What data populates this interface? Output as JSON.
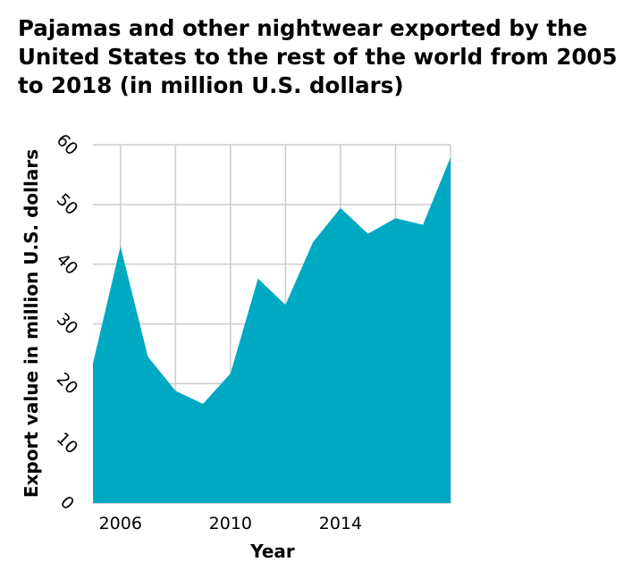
{
  "chart_data": {
    "type": "area",
    "title": "Pajamas and other nightwear exported by the United States to the rest of the world from 2005 to 2018 (in million U.S. dollars)",
    "xlabel": "Year",
    "ylabel": "Export value in million U.S. dollars",
    "x": [
      2005,
      2006,
      2007,
      2008,
      2009,
      2010,
      2011,
      2012,
      2013,
      2014,
      2015,
      2016,
      2017,
      2018
    ],
    "values": [
      23.4,
      43.0,
      24.5,
      18.8,
      16.6,
      21.7,
      37.6,
      33.2,
      43.7,
      49.4,
      45.1,
      47.7,
      46.6,
      57.9
    ],
    "xlim": [
      2005,
      2018
    ],
    "ylim": [
      0,
      60
    ],
    "x_ticks": [
      2006,
      2010,
      2014
    ],
    "x_tick_labels": [
      "2006",
      "2010",
      "2014"
    ],
    "y_ticks": [
      0,
      10,
      20,
      30,
      40,
      50,
      60
    ],
    "y_tick_labels": [
      "0",
      "10",
      "20",
      "30",
      "40",
      "50",
      "60"
    ],
    "x_grid": [
      2006,
      2008,
      2010,
      2012,
      2014,
      2016,
      2018
    ],
    "grid": true,
    "area_color": "#00a9c2",
    "legend": "none"
  }
}
